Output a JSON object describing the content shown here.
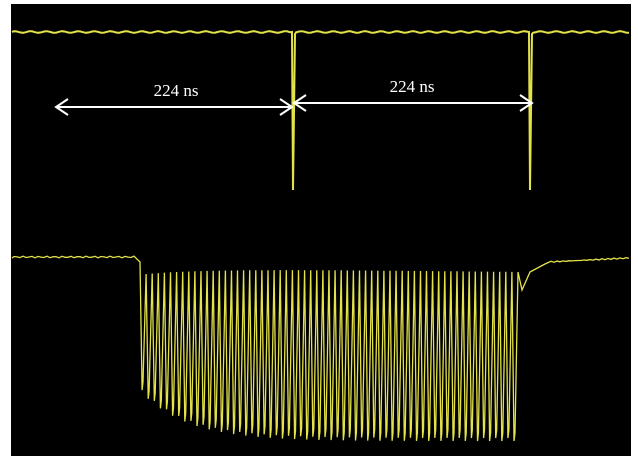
{
  "annotations": [
    {
      "label": "224 ns"
    },
    {
      "label": "224 ns"
    }
  ]
}
